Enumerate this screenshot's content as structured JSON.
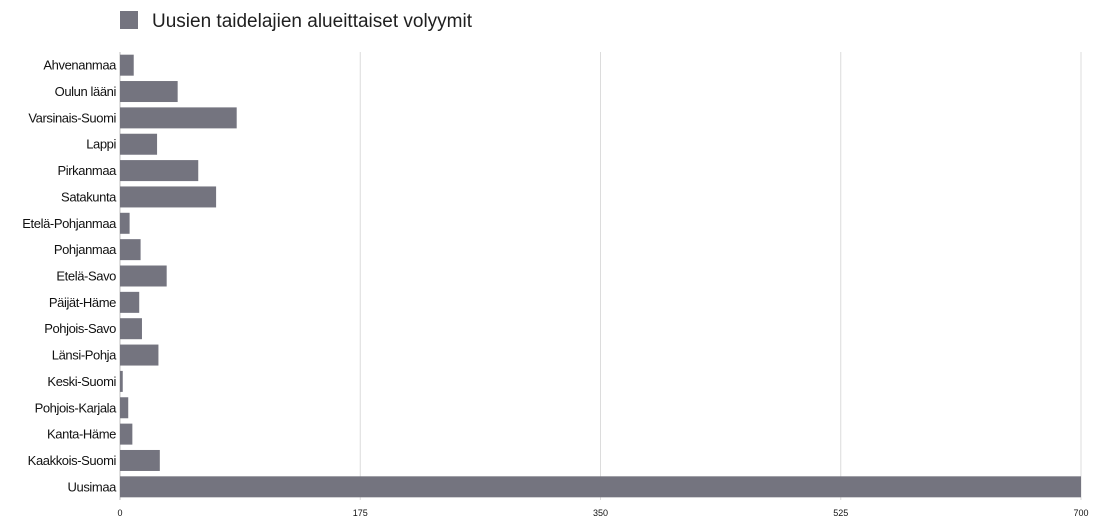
{
  "chart_data": {
    "type": "bar",
    "orientation": "horizontal",
    "legend": {
      "label": "Uusien taidelajien alueittaiset volyymit",
      "placement": "top-left"
    },
    "categories": [
      "Ahvenanmaa",
      "Oulun lääni",
      "Varsinais-Suomi",
      "Lappi",
      "Pirkanmaa",
      "Satakunta",
      "Etelä-Pohjanmaa",
      "Pohjanmaa",
      "Etelä-Savo",
      "Päijät-Häme",
      "Pohjois-Savo",
      "Länsi-Pohja",
      "Keski-Suomi",
      "Pohjois-Karjala",
      "Kanta-Häme",
      "Kaakkois-Suomi",
      "Uusimaa"
    ],
    "series": [
      {
        "name": "Uusien taidelajien alueittaiset volyymit",
        "values": [
          10,
          42,
          85,
          27,
          57,
          70,
          7,
          15,
          34,
          14,
          16,
          28,
          2,
          6,
          9,
          29,
          700
        ]
      }
    ],
    "xlim": [
      0,
      700
    ],
    "xticks": [
      "0",
      "175",
      "350",
      "525",
      "700"
    ],
    "grid": true,
    "colors": {
      "bar": "#74747f",
      "grid": "#dcdcdc"
    }
  }
}
